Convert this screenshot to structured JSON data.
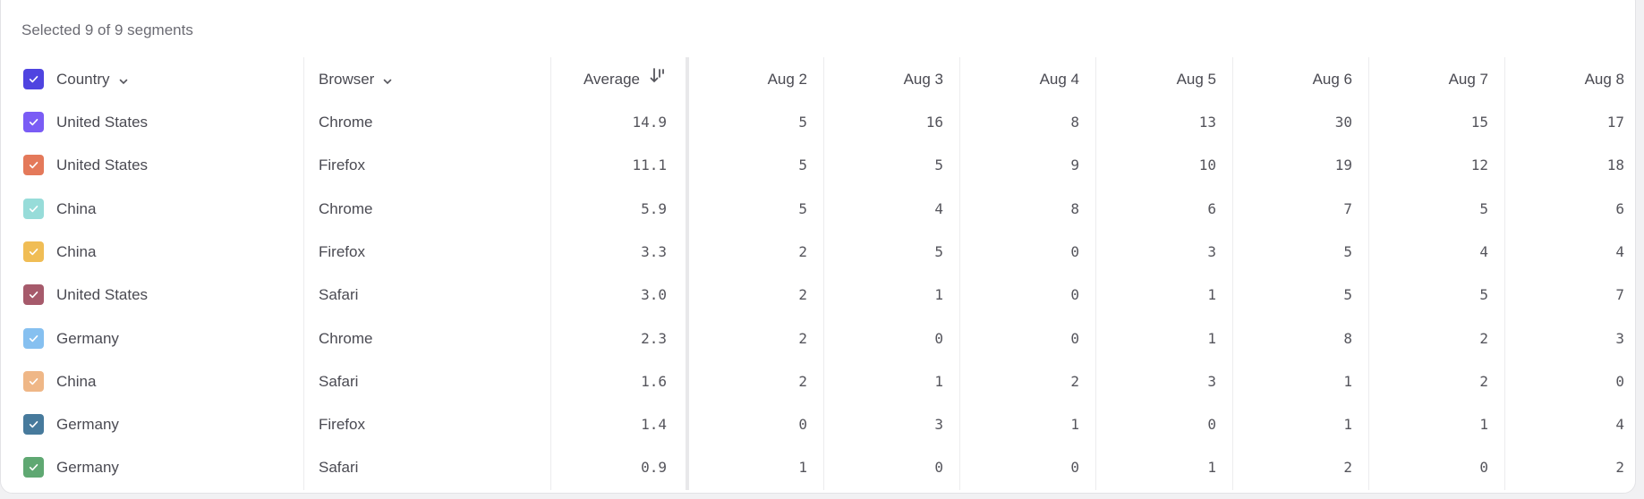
{
  "caption": "Selected 9 of 9 segments",
  "header": {
    "country": "Country",
    "browser": "Browser",
    "average": "Average",
    "dates": [
      "Aug 2",
      "Aug 3",
      "Aug 4",
      "Aug 5",
      "Aug 6",
      "Aug 7",
      "Aug 8"
    ],
    "select_all_color": "#4f44e0",
    "sort": "descending"
  },
  "rows": [
    {
      "country": "United States",
      "browser": "Chrome",
      "average": "14.9",
      "values": [
        "5",
        "16",
        "8",
        "13",
        "30",
        "15",
        "17"
      ],
      "color": "#7a5cf5"
    },
    {
      "country": "United States",
      "browser": "Firefox",
      "average": "11.1",
      "values": [
        "5",
        "5",
        "9",
        "10",
        "19",
        "12",
        "18"
      ],
      "color": "#e4795a"
    },
    {
      "country": "China",
      "browser": "Chrome",
      "average": "5.9",
      "values": [
        "5",
        "4",
        "8",
        "6",
        "7",
        "5",
        "6"
      ],
      "color": "#97dcd9"
    },
    {
      "country": "China",
      "browser": "Firefox",
      "average": "3.3",
      "values": [
        "2",
        "5",
        "0",
        "3",
        "5",
        "4",
        "4"
      ],
      "color": "#f0bd55"
    },
    {
      "country": "United States",
      "browser": "Safari",
      "average": "3.0",
      "values": [
        "2",
        "1",
        "0",
        "1",
        "5",
        "5",
        "7"
      ],
      "color": "#a65a6b"
    },
    {
      "country": "Germany",
      "browser": "Chrome",
      "average": "2.3",
      "values": [
        "2",
        "0",
        "0",
        "1",
        "8",
        "2",
        "3"
      ],
      "color": "#86c0f0"
    },
    {
      "country": "China",
      "browser": "Safari",
      "average": "1.6",
      "values": [
        "2",
        "1",
        "2",
        "3",
        "1",
        "2",
        "0"
      ],
      "color": "#efb787"
    },
    {
      "country": "Germany",
      "browser": "Firefox",
      "average": "1.4",
      "values": [
        "0",
        "3",
        "1",
        "0",
        "1",
        "1",
        "4"
      ],
      "color": "#477a9c"
    },
    {
      "country": "Germany",
      "browser": "Safari",
      "average": "0.9",
      "values": [
        "1",
        "0",
        "0",
        "1",
        "2",
        "0",
        "2"
      ],
      "color": "#5fa872"
    }
  ]
}
